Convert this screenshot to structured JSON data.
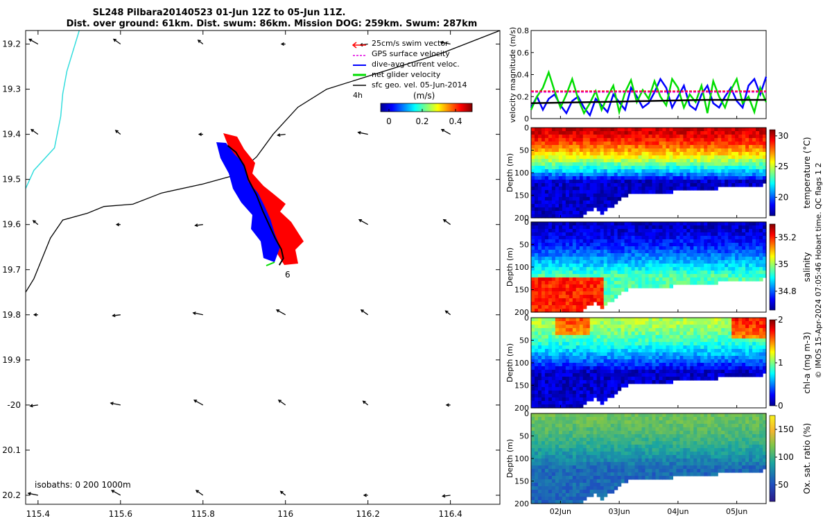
{
  "title": {
    "line1": "SL248 Pilbara20140523 01-Jun 12Z to 05-Jun 11Z.",
    "line2": "Dist. over ground: 61km. Dist. swum: 86km. Mission DOG: 259km. Swum: 287km"
  },
  "copyright": "© IMOS 15-Apr-2024 07:05:46 Hobart time. QC flags 1  2",
  "map": {
    "lon_range": [
      115.37,
      116.52
    ],
    "lat_range": [
      -20.22,
      -19.17
    ],
    "xtick_labels": [
      "115.4",
      "115.6",
      "115.8",
      "116",
      "116.2",
      "116.4"
    ],
    "xticks": [
      115.4,
      115.6,
      115.8,
      116.0,
      116.2,
      116.4
    ],
    "ytick_labels": [
      "19.2",
      "19.3",
      "19.4",
      "19.5",
      "19.6",
      "19.7",
      "19.8",
      "19.9",
      "-20",
      "20.1",
      "20.2"
    ],
    "yticks": [
      -19.2,
      -19.3,
      -19.4,
      -19.5,
      -19.6,
      -19.7,
      -19.8,
      -19.9,
      -20.0,
      -20.1,
      -20.2
    ],
    "legend": {
      "items": [
        {
          "label": "25cm/s swim vector",
          "color": "#ff0000"
        },
        {
          "label": "GPS surface velocity",
          "color": "#e000e0"
        },
        {
          "label": "dive-avg current veloc.",
          "color": "#0000ff"
        },
        {
          "label": "net glider velocity",
          "color": "#00dd00"
        },
        {
          "label": "sfc geo. vel. 05-Jun-2014",
          "color": "#000000"
        }
      ],
      "interval_label": "4h",
      "colorbar_unit": "(m/s)",
      "colorbar_ticks": [
        "0",
        "0.2",
        "0.4"
      ],
      "colorbar_values": [
        0,
        0.2,
        0.4
      ],
      "colorbar_range": [
        -0.05,
        0.5
      ]
    },
    "isobath_label": "isobaths: 0   200  1000m",
    "end_marker": "6",
    "track_lonlat": [
      [
        115.86,
        -19.425
      ],
      [
        115.88,
        -19.44
      ],
      [
        115.9,
        -19.47
      ],
      [
        115.91,
        -19.5
      ],
      [
        115.93,
        -19.535
      ],
      [
        115.945,
        -19.57
      ],
      [
        115.96,
        -19.6
      ],
      [
        115.975,
        -19.63
      ],
      [
        115.99,
        -19.655
      ],
      [
        115.995,
        -19.675
      ],
      [
        115.985,
        -19.69
      ]
    ],
    "isobath_0m": [
      [
        115.5,
        -19.17
      ],
      [
        115.47,
        -19.26
      ],
      [
        115.46,
        -19.31
      ],
      [
        115.455,
        -19.36
      ],
      [
        115.44,
        -19.43
      ],
      [
        115.39,
        -19.48
      ],
      [
        115.37,
        -19.52
      ]
    ],
    "isobath_200m": [
      [
        116.52,
        -19.17
      ],
      [
        116.38,
        -19.22
      ],
      [
        116.24,
        -19.26
      ],
      [
        116.1,
        -19.3
      ],
      [
        116.03,
        -19.34
      ],
      [
        115.97,
        -19.4
      ],
      [
        115.93,
        -19.45
      ],
      [
        115.88,
        -19.49
      ],
      [
        115.8,
        -19.51
      ],
      [
        115.7,
        -19.53
      ],
      [
        115.63,
        -19.555
      ],
      [
        115.56,
        -19.56
      ],
      [
        115.52,
        -19.575
      ],
      [
        115.46,
        -19.59
      ],
      [
        115.43,
        -19.63
      ],
      [
        115.39,
        -19.72
      ],
      [
        115.37,
        -19.75
      ]
    ],
    "geo_arrow_grid": {
      "lons": [
        115.4,
        115.6,
        115.8,
        116.0,
        116.2,
        116.4
      ],
      "lats": [
        -19.2,
        -19.4,
        -19.6,
        -19.8,
        -20.0,
        -20.2
      ],
      "u": [
        -0.09,
        -0.07,
        -0.05,
        -0.04,
        -0.08,
        -0.1
      ],
      "v": [
        0.05,
        0.05,
        0.04,
        0.0,
        -0.01,
        0.02
      ]
    }
  },
  "chart_data": [
    {
      "type": "line",
      "title": "",
      "ylabel": "velocity magnitude (m/s)",
      "ylim": [
        0,
        0.8
      ],
      "yticks": [
        0,
        0.2,
        0.4,
        0.6,
        0.8
      ],
      "xlim": [
        0,
        4
      ],
      "x_tick_labels": [
        "02Jun",
        "03Jun",
        "04Jun",
        "05Jun"
      ],
      "x_tick_values": [
        0.5,
        1.5,
        2.5,
        3.5
      ],
      "series": [
        {
          "name": "dive-avg current veloc.",
          "color": "#0000ff",
          "x": [
            0,
            0.1,
            0.2,
            0.3,
            0.4,
            0.5,
            0.6,
            0.7,
            0.8,
            0.9,
            1.0,
            1.1,
            1.2,
            1.3,
            1.4,
            1.5,
            1.6,
            1.7,
            1.8,
            1.9,
            2.0,
            2.1,
            2.2,
            2.3,
            2.4,
            2.5,
            2.6,
            2.7,
            2.8,
            2.9,
            3.0,
            3.1,
            3.2,
            3.3,
            3.4,
            3.5,
            3.6,
            3.7,
            3.8,
            3.9,
            4.0
          ],
          "values": [
            0.1,
            0.2,
            0.08,
            0.18,
            0.22,
            0.12,
            0.05,
            0.16,
            0.2,
            0.1,
            0.03,
            0.18,
            0.12,
            0.06,
            0.22,
            0.15,
            0.08,
            0.28,
            0.2,
            0.1,
            0.14,
            0.24,
            0.36,
            0.28,
            0.1,
            0.2,
            0.3,
            0.12,
            0.08,
            0.22,
            0.3,
            0.14,
            0.1,
            0.2,
            0.28,
            0.16,
            0.1,
            0.3,
            0.36,
            0.22,
            0.38
          ]
        },
        {
          "name": "net glider velocity",
          "color": "#00dd00",
          "x": [
            0,
            0.1,
            0.2,
            0.3,
            0.4,
            0.5,
            0.6,
            0.7,
            0.8,
            0.9,
            1.0,
            1.1,
            1.2,
            1.3,
            1.4,
            1.5,
            1.6,
            1.7,
            1.8,
            1.9,
            2.0,
            2.1,
            2.2,
            2.3,
            2.4,
            2.5,
            2.6,
            2.7,
            2.8,
            2.9,
            3.0,
            3.1,
            3.2,
            3.3,
            3.4,
            3.5,
            3.6,
            3.7,
            3.8,
            3.9,
            4.0
          ],
          "values": [
            0.08,
            0.2,
            0.28,
            0.42,
            0.25,
            0.1,
            0.22,
            0.36,
            0.18,
            0.05,
            0.14,
            0.25,
            0.08,
            0.2,
            0.3,
            0.06,
            0.24,
            0.35,
            0.15,
            0.26,
            0.18,
            0.34,
            0.2,
            0.12,
            0.36,
            0.28,
            0.1,
            0.22,
            0.15,
            0.3,
            0.05,
            0.34,
            0.2,
            0.1,
            0.26,
            0.36,
            0.14,
            0.2,
            0.06,
            0.28,
            0.15
          ]
        },
        {
          "name": "25cm/s swim vector",
          "color": "#ff0000",
          "dashed": true,
          "x": [
            0,
            4
          ],
          "values": [
            0.25,
            0.25
          ]
        },
        {
          "name": "GPS surface velocity",
          "color": "#e000e0",
          "dashed": true,
          "x": [
            0,
            4
          ],
          "values": [
            0.24,
            0.24
          ]
        },
        {
          "name": "sfc geo. vel.",
          "color": "#000000",
          "x": [
            0,
            1,
            2,
            3,
            4
          ],
          "values": [
            0.14,
            0.15,
            0.16,
            0.17,
            0.17
          ]
        }
      ]
    },
    {
      "type": "heatmap",
      "ylabel": "Depth (m)",
      "cbar_label": "temperature (°C)",
      "ylim": [
        200,
        0
      ],
      "yticks": [
        0,
        50,
        100,
        150,
        200
      ],
      "cbar_ticks": [
        "20",
        "25",
        "30"
      ],
      "cbar_values": [
        20,
        25,
        30
      ],
      "cbar_range": [
        17,
        31
      ],
      "surface": 30,
      "bottom": 18
    },
    {
      "type": "heatmap",
      "ylabel": "Depth (m)",
      "cbar_label": "salinity",
      "ylim": [
        200,
        0
      ],
      "yticks": [
        0,
        50,
        100,
        150,
        200
      ],
      "cbar_ticks": [
        "34.8",
        "35",
        "35.2"
      ],
      "cbar_values": [
        34.8,
        35.0,
        35.2
      ],
      "cbar_range": [
        34.66,
        35.3
      ],
      "surface": 34.7,
      "bottom": 34.95
    },
    {
      "type": "heatmap",
      "ylabel": "Depth (m)",
      "cbar_label": "chl-a (mg m-3)",
      "ylim": [
        200,
        0
      ],
      "yticks": [
        0,
        50,
        100,
        150,
        200
      ],
      "cbar_ticks": [
        "0",
        "1",
        "2"
      ],
      "cbar_values": [
        0,
        1,
        2
      ],
      "cbar_range": [
        0,
        2
      ],
      "surface": 1.1,
      "bottom": 0.15
    },
    {
      "type": "heatmap",
      "ylabel": "Depth (m)",
      "cbar_label": "Ox. sat. ratio (%)",
      "ylim": [
        200,
        0
      ],
      "yticks": [
        0,
        50,
        100,
        150,
        200
      ],
      "cbar_ticks": [
        "50",
        "100",
        "150"
      ],
      "cbar_values": [
        50,
        100,
        150
      ],
      "cbar_range": [
        20,
        175
      ],
      "surface": 108,
      "bottom": 60
    }
  ]
}
